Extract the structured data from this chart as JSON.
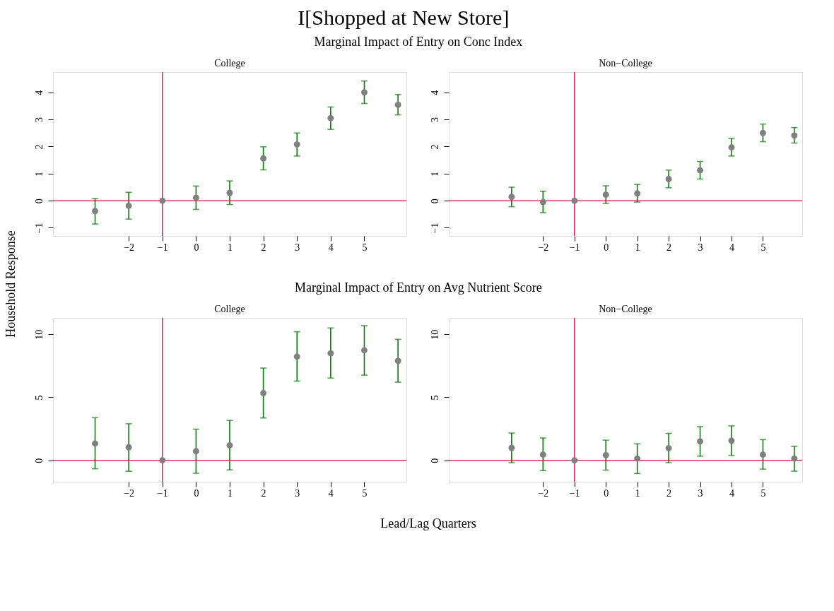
{
  "chart_data": [
    {
      "type": "scatter",
      "title": "College",
      "subtitle": "Marginal Impact of Entry on Conc Index",
      "annotations": [
        "I[Shopped at New Store]"
      ],
      "ylabel": "Household Response",
      "marker": "circle",
      "x": [
        -3,
        -2,
        -1,
        0,
        1,
        2,
        3,
        4,
        5,
        6
      ],
      "series": [
        {
          "color": "#808080",
          "values": [
            -0.38,
            -0.19,
            0,
            0.11,
            0.29,
            1.56,
            2.08,
            3.05,
            4.0,
            3.54
          ],
          "errors": [
            [
              -0.86,
              0.08
            ],
            [
              -0.68,
              0.31
            ],
            null,
            [
              -0.32,
              0.54
            ],
            [
              -0.14,
              0.73
            ],
            [
              1.14,
              1.99
            ],
            [
              1.65,
              2.5
            ],
            [
              2.63,
              3.46
            ],
            [
              3.59,
              4.42
            ],
            [
              3.17,
              3.92
            ]
          ]
        }
      ],
      "xlim": [
        -4.25,
        6.25
      ],
      "xticks": [
        -2,
        -1,
        0,
        1,
        2,
        3,
        4,
        5
      ],
      "ylim": [
        -1.3,
        4.75
      ],
      "yticks": [
        -1,
        0,
        1,
        2,
        3,
        4
      ],
      "ref_lines": [
        {
          "axis": "x",
          "value": -1,
          "color": "#d6154f"
        },
        {
          "axis": "y",
          "value": 0,
          "color": "#d6154f"
        }
      ]
    },
    {
      "type": "scatter",
      "title": "Non−College",
      "marker": "circle",
      "x": [
        -3,
        -2,
        -1,
        0,
        1,
        2,
        3,
        4,
        5,
        6
      ],
      "series": [
        {
          "color": "#808080",
          "values": [
            0.14,
            -0.05,
            0,
            0.22,
            0.27,
            0.8,
            1.12,
            1.97,
            2.5,
            2.41
          ],
          "errors": [
            [
              -0.22,
              0.5
            ],
            [
              -0.44,
              0.35
            ],
            null,
            [
              -0.1,
              0.55
            ],
            [
              -0.05,
              0.6
            ],
            [
              0.48,
              1.13
            ],
            [
              0.8,
              1.45
            ],
            [
              1.65,
              2.3
            ],
            [
              2.18,
              2.83
            ],
            [
              2.13,
              2.7
            ]
          ]
        }
      ],
      "xlim": [
        -5,
        6.25
      ],
      "xticks": [
        -2,
        -1,
        0,
        1,
        2,
        3,
        4,
        5
      ],
      "ylim": [
        -1.3,
        4.75
      ],
      "yticks": [
        -1,
        0,
        1,
        2,
        3,
        4
      ],
      "ref_lines": [
        {
          "axis": "x",
          "value": -1,
          "color": "#d6154f"
        },
        {
          "axis": "y",
          "value": 0,
          "color": "#d6154f"
        }
      ]
    },
    {
      "type": "scatter",
      "title": "College",
      "subtitle": "Marginal Impact of Entry on Avg Nutrient Score",
      "xlabel": "Lead/Lag Quarters",
      "marker": "circle",
      "x": [
        -3,
        -2,
        -1,
        0,
        1,
        2,
        3,
        4,
        5,
        6
      ],
      "series": [
        {
          "color": "#808080",
          "values": [
            1.33,
            1.03,
            0,
            0.72,
            1.19,
            5.33,
            8.23,
            8.49,
            8.73,
            7.89
          ],
          "errors": [
            [
              -0.67,
              3.38
            ],
            [
              -0.87,
              2.9
            ],
            null,
            [
              -1.03,
              2.47
            ],
            [
              -0.76,
              3.16
            ],
            [
              3.36,
              7.32
            ],
            [
              6.28,
              10.2
            ],
            [
              6.52,
              10.5
            ],
            [
              6.76,
              10.68
            ],
            [
              6.2,
              9.6
            ]
          ]
        }
      ],
      "xlim": [
        -4.25,
        6.25
      ],
      "xticks": [
        -2,
        -1,
        0,
        1,
        2,
        3,
        4,
        5
      ],
      "ylim": [
        -1.7,
        11.3
      ],
      "yticks": [
        0,
        5,
        10
      ],
      "ref_lines": [
        {
          "axis": "x",
          "value": -1,
          "color": "#d6154f"
        },
        {
          "axis": "y",
          "value": 0,
          "color": "#d6154f"
        }
      ]
    },
    {
      "type": "scatter",
      "title": "Non−College",
      "marker": "circle",
      "x": [
        -3,
        -2,
        -1,
        0,
        1,
        2,
        3,
        4,
        5,
        6
      ],
      "series": [
        {
          "color": "#808080",
          "values": [
            0.99,
            0.45,
            0,
            0.41,
            0.14,
            0.97,
            1.5,
            1.56,
            0.45,
            0.14
          ],
          "errors": [
            [
              -0.19,
              2.16
            ],
            [
              -0.82,
              1.77
            ],
            null,
            [
              -0.78,
              1.6
            ],
            [
              -1.05,
              1.31
            ],
            [
              -0.19,
              2.14
            ],
            [
              0.33,
              2.67
            ],
            [
              0.39,
              2.73
            ],
            [
              -0.7,
              1.64
            ],
            [
              -0.86,
              1.11
            ]
          ]
        }
      ],
      "xlim": [
        -5,
        6.25
      ],
      "xticks": [
        -2,
        -1,
        0,
        1,
        2,
        3,
        4,
        5
      ],
      "ylim": [
        -1.7,
        11.3
      ],
      "yticks": [
        0,
        5,
        10
      ],
      "ref_lines": [
        {
          "axis": "x",
          "value": -1,
          "color": "#d6154f"
        },
        {
          "axis": "y",
          "value": 0,
          "color": "#d6154f"
        }
      ]
    }
  ]
}
